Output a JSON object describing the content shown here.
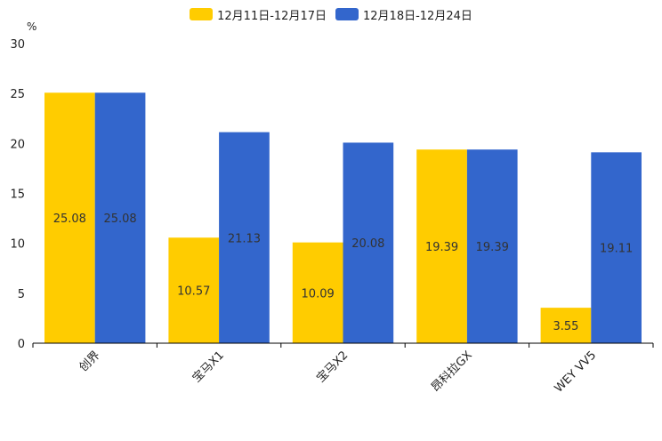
{
  "chart_data": {
    "type": "bar",
    "title": "",
    "xlabel": "",
    "ylabel": "%",
    "ylim": [
      0,
      30
    ],
    "yticks": [
      0,
      5,
      10,
      15,
      20,
      25,
      30
    ],
    "categories": [
      "创界",
      "宝马X1",
      "宝马X2",
      "昂科拉GX",
      "WEY VV5"
    ],
    "series": [
      {
        "name": "12月11日-12月17日",
        "color": "#FFCC00",
        "values": [
          25.08,
          10.57,
          10.09,
          19.39,
          3.55
        ],
        "labels": [
          "25.08",
          "10.57",
          "10.09",
          "19.39",
          "3.55"
        ]
      },
      {
        "name": "12月18日-12月24日",
        "color": "#3366CC",
        "values": [
          25.08,
          21.13,
          20.08,
          19.39,
          19.11
        ],
        "labels": [
          "25.08",
          "21.13",
          "20.08",
          "19.39",
          "19.11"
        ]
      }
    ],
    "legend_position": "top-center",
    "grid": false
  }
}
